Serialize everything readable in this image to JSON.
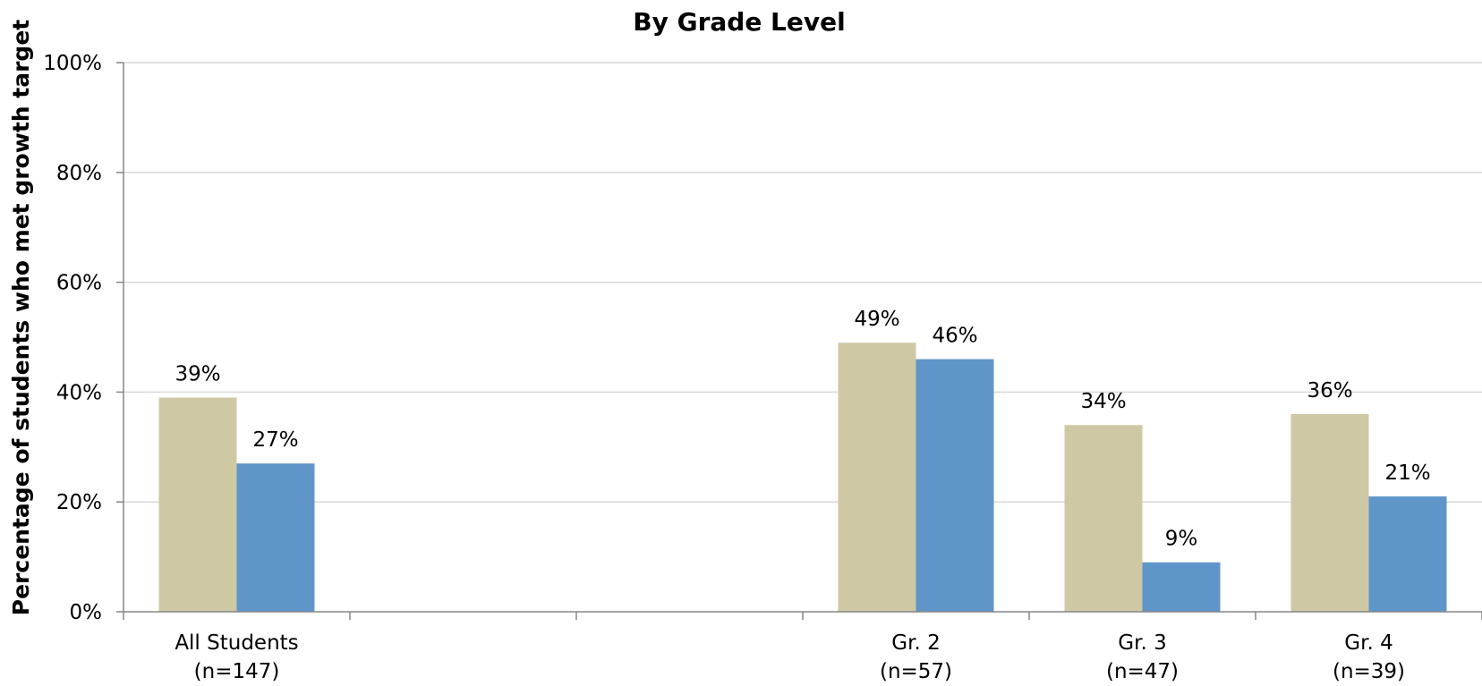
{
  "chart_data": {
    "type": "bar",
    "title": "By Grade Level",
    "ylabel": "Percentage of students who met growth target",
    "xlabel": "",
    "ylim": [
      0,
      100
    ],
    "yticks": [
      "0%",
      "20%",
      "40%",
      "60%",
      "80%",
      "100%"
    ],
    "grid": true,
    "categories": [
      {
        "label": "All Students",
        "sublabel": "(n=147)"
      },
      {
        "label": "",
        "sublabel": ""
      },
      {
        "label": "",
        "sublabel": ""
      },
      {
        "label": "Gr. 2",
        "sublabel": "(n=57)"
      },
      {
        "label": "Gr. 3",
        "sublabel": "(n=47)"
      },
      {
        "label": "Gr. 4",
        "sublabel": "(n=39)"
      }
    ],
    "series": [
      {
        "color": "#cfc8a5",
        "values": [
          39,
          null,
          null,
          49,
          34,
          36
        ],
        "labels": [
          "39%",
          "",
          "",
          "49%",
          "34%",
          "36%"
        ]
      },
      {
        "color": "#6095c9",
        "values": [
          27,
          null,
          null,
          46,
          9,
          21
        ],
        "labels": [
          "27%",
          "",
          "",
          "46%",
          "9%",
          "21%"
        ]
      }
    ]
  }
}
